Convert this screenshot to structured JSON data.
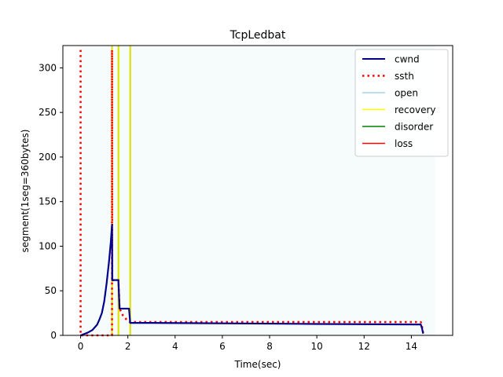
{
  "chart_data": {
    "type": "line",
    "title": "TcpLedbat",
    "xlabel": "Time(sec)",
    "ylabel": "segment(1seg=360bytes)",
    "xlim": [
      -0.75,
      15.75
    ],
    "ylim": [
      0,
      325
    ],
    "xticks": [
      0,
      2,
      4,
      6,
      8,
      10,
      12,
      14
    ],
    "yticks": [
      0,
      50,
      100,
      150,
      200,
      250,
      300
    ],
    "grid": false,
    "legend_position": "top-right",
    "series": [
      {
        "name": "cwnd",
        "color": "#00008b",
        "style": "solid",
        "points": [
          [
            0,
            0
          ],
          [
            0.3,
            3
          ],
          [
            0.5,
            6
          ],
          [
            0.7,
            12
          ],
          [
            0.8,
            18
          ],
          [
            0.9,
            25
          ],
          [
            1.0,
            38
          ],
          [
            1.1,
            58
          ],
          [
            1.2,
            82
          ],
          [
            1.28,
            105
          ],
          [
            1.33,
            124
          ],
          [
            1.34,
            62
          ],
          [
            1.6,
            62
          ],
          [
            1.65,
            30
          ],
          [
            2.05,
            30
          ],
          [
            2.1,
            14
          ],
          [
            3,
            14
          ],
          [
            6,
            13.5
          ],
          [
            10,
            12.8
          ],
          [
            14.4,
            12.2
          ],
          [
            14.45,
            8
          ],
          [
            14.5,
            2
          ]
        ]
      },
      {
        "name": "ssth",
        "color": "#ff0000",
        "style": "dotted",
        "points": [
          [
            0,
            320
          ],
          [
            0,
            0
          ],
          [
            1.33,
            0
          ],
          [
            1.33,
            320
          ],
          [
            1.34,
            62
          ],
          [
            1.6,
            62
          ],
          [
            1.65,
            30
          ],
          [
            1.8,
            22
          ],
          [
            2.0,
            16
          ],
          [
            2.1,
            15
          ],
          [
            14.4,
            15
          ],
          [
            14.45,
            10
          ],
          [
            14.5,
            3
          ]
        ]
      }
    ],
    "state_spans": [
      {
        "state": "open",
        "color": "#e0f2f2",
        "from": 0,
        "to": 15
      },
      {
        "state": "recovery",
        "color": "#ffff00",
        "from": 1.3,
        "to": 1.36
      },
      {
        "state": "recovery",
        "color": "#ffff00",
        "from": 1.58,
        "to": 1.66
      },
      {
        "state": "recovery",
        "color": "#ffff00",
        "from": 2.08,
        "to": 2.14
      }
    ],
    "state_lines": [
      {
        "state": "recovery",
        "color": "#d8e000",
        "x": [
          1.33,
          1.6,
          2.1
        ]
      }
    ],
    "legend": [
      {
        "label": "cwnd",
        "color": "#00008b",
        "style": "solid",
        "width": 2
      },
      {
        "label": "ssth",
        "color": "#ff0000",
        "style": "dotted",
        "width": 2.5
      },
      {
        "label": "open",
        "color": "#a6d0ea",
        "style": "solid",
        "width": 1.5
      },
      {
        "label": "recovery",
        "color": "#ffff00",
        "style": "solid",
        "width": 1.5
      },
      {
        "label": "disorder",
        "color": "#008000",
        "style": "solid",
        "width": 1.5
      },
      {
        "label": "loss",
        "color": "#ff0000",
        "style": "solid",
        "width": 1.5
      }
    ]
  }
}
